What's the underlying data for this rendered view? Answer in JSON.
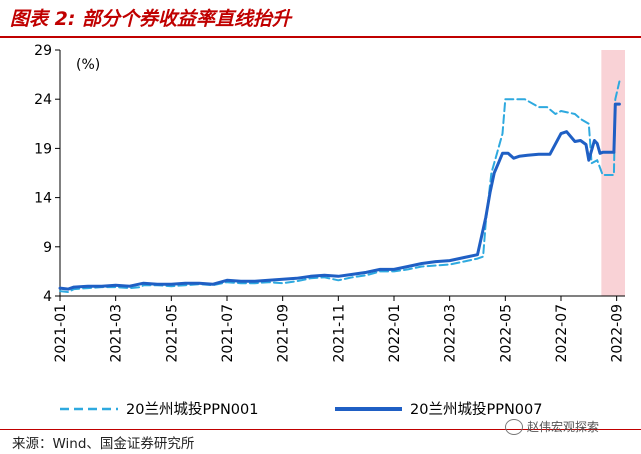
{
  "header": {
    "title": "图表 2:  部分个券收益率直线抬升"
  },
  "footer": {
    "source": "来源：Wind、国金证券研究所",
    "watermark": "赵伟宏观探索"
  },
  "chart_data": {
    "type": "line",
    "title": "图表 2:  部分个券收益率直线抬升",
    "unit_label": "(%)",
    "ylim": [
      4,
      29
    ],
    "yticks": [
      4,
      9,
      14,
      19,
      24,
      29
    ],
    "x_tick_labels": [
      "2021-01",
      "2021-03",
      "2021-05",
      "2021-07",
      "2021-09",
      "2021-11",
      "2022-01",
      "2022-03",
      "2022-05",
      "2022-07",
      "2022-09"
    ],
    "x_tick_positions": [
      0,
      2,
      4,
      6,
      8,
      10,
      12,
      14,
      16,
      18,
      20
    ],
    "xlim": [
      0,
      20.3
    ],
    "highlight_range": [
      19.45,
      20.3
    ],
    "highlight_color": "#f9d2d6",
    "legend_position": "bottom",
    "grid": false,
    "series": [
      {
        "name": "20兰州城投PPN001",
        "style": "dashed",
        "color": "#2ea9df",
        "x": [
          0.0,
          0.3,
          0.5,
          1.0,
          1.5,
          2.0,
          2.5,
          2.9,
          3.0,
          3.5,
          4.0,
          4.5,
          5.0,
          5.5,
          6.0,
          6.5,
          7.0,
          7.5,
          8.0,
          8.5,
          9.0,
          9.5,
          10.0,
          10.5,
          11.0,
          11.5,
          12.0,
          12.5,
          13.0,
          13.5,
          14.0,
          14.5,
          15.0,
          15.2,
          15.3,
          15.5,
          15.7,
          15.9,
          16.0,
          16.2,
          16.7,
          17.2,
          17.5,
          17.8,
          18.0,
          18.5,
          18.7,
          19.0,
          19.1,
          19.3,
          19.5,
          19.7,
          19.9,
          19.95,
          20.1
        ],
        "y": [
          4.5,
          4.4,
          4.7,
          4.8,
          4.9,
          4.9,
          4.8,
          4.9,
          5.1,
          5.1,
          5.0,
          5.1,
          5.2,
          5.1,
          5.4,
          5.3,
          5.3,
          5.4,
          5.3,
          5.5,
          5.8,
          5.9,
          5.6,
          5.9,
          6.1,
          6.5,
          6.5,
          6.7,
          7.0,
          7.1,
          7.2,
          7.5,
          7.8,
          8.0,
          11.5,
          16.5,
          18.5,
          20.5,
          24.0,
          24.0,
          24.0,
          23.2,
          23.2,
          22.5,
          22.8,
          22.5,
          22.0,
          21.5,
          17.5,
          17.8,
          16.3,
          16.3,
          16.3,
          24.0,
          25.8
        ]
      },
      {
        "name": "20兰州城投PPN007",
        "style": "solid",
        "color": "#1f5fc4",
        "x": [
          0.0,
          0.3,
          0.5,
          1.0,
          1.5,
          2.0,
          2.5,
          3.0,
          3.5,
          4.0,
          4.5,
          5.0,
          5.5,
          6.0,
          6.5,
          7.0,
          7.5,
          8.0,
          8.5,
          9.0,
          9.5,
          10.0,
          10.5,
          11.0,
          11.5,
          12.0,
          12.5,
          13.0,
          13.5,
          14.0,
          14.5,
          15.0,
          15.3,
          15.45,
          15.6,
          15.75,
          15.9,
          16.1,
          16.3,
          16.5,
          16.8,
          17.2,
          17.6,
          18.0,
          18.2,
          18.5,
          18.7,
          18.9,
          19.0,
          19.2,
          19.3,
          19.4,
          19.5,
          19.9,
          19.95,
          20.1
        ],
        "y": [
          4.8,
          4.7,
          4.9,
          5.0,
          5.0,
          5.1,
          5.0,
          5.3,
          5.2,
          5.2,
          5.3,
          5.3,
          5.2,
          5.6,
          5.5,
          5.5,
          5.6,
          5.7,
          5.8,
          6.0,
          6.1,
          6.0,
          6.2,
          6.4,
          6.7,
          6.7,
          7.0,
          7.3,
          7.5,
          7.6,
          7.9,
          8.2,
          12.0,
          14.5,
          16.5,
          17.5,
          18.5,
          18.5,
          18.0,
          18.2,
          18.3,
          18.4,
          18.4,
          20.5,
          20.7,
          19.7,
          19.8,
          19.4,
          17.8,
          19.8,
          19.5,
          18.5,
          18.6,
          18.6,
          23.5,
          23.5
        ]
      }
    ]
  }
}
